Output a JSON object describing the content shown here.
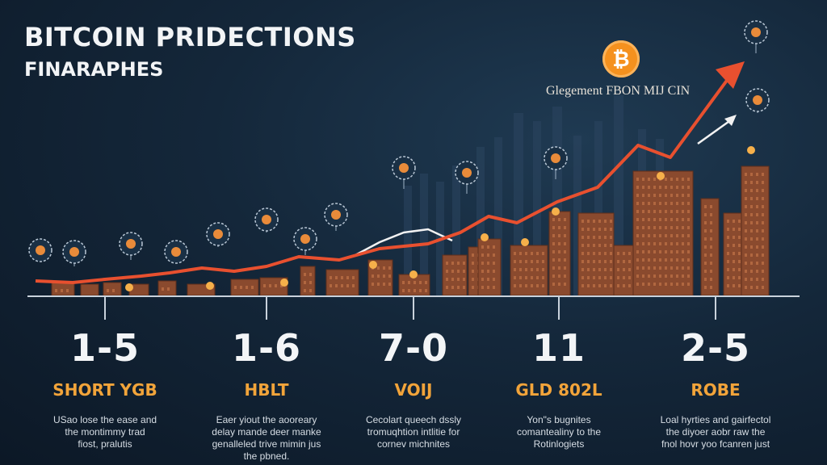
{
  "header": {
    "title": "BITCOIN PRIDECTIONS",
    "subtitle": "FINARAPHES"
  },
  "chart_label": "Glegement FBON MIJ CIN",
  "btc_symbol": "₿",
  "colors": {
    "background": "#14273a",
    "trend_line": "#e8502f",
    "accent_text": "#f2a43a",
    "bitcoin": "#f5911e",
    "buildings": "#8a4a2e"
  },
  "milestones": [
    {
      "number": "1-5",
      "label": "SHORT YGB",
      "desc": "USao lose the ease and\nthe montimmy trad\nfiost, pralutis"
    },
    {
      "number": "1-6",
      "label": "HBLT",
      "desc": "Eaer yiout the aooreary\ndelay mande deer manke\ngenalleled trive mimin jus\nthe pbned."
    },
    {
      "number": "7-0",
      "label": "VOIJ",
      "desc": "Cecolart queech dssly\ntromuqhtion intlitie for\ncornev michnites"
    },
    {
      "number": "11",
      "label": "GLD 802L",
      "desc": "Yon\"s bugnites\ncomantealiny to the\nRotinlogiets"
    },
    {
      "number": "2-5",
      "label": "ROBE",
      "desc": "Loal hyrties and gairfectol\nthe diyoer aobr raw the\nfnol hovr yoo fcanren just"
    }
  ],
  "icons": [
    "gear-icon",
    "chart-icon",
    "coin-icon",
    "network-icon",
    "bitcoin-icon"
  ]
}
